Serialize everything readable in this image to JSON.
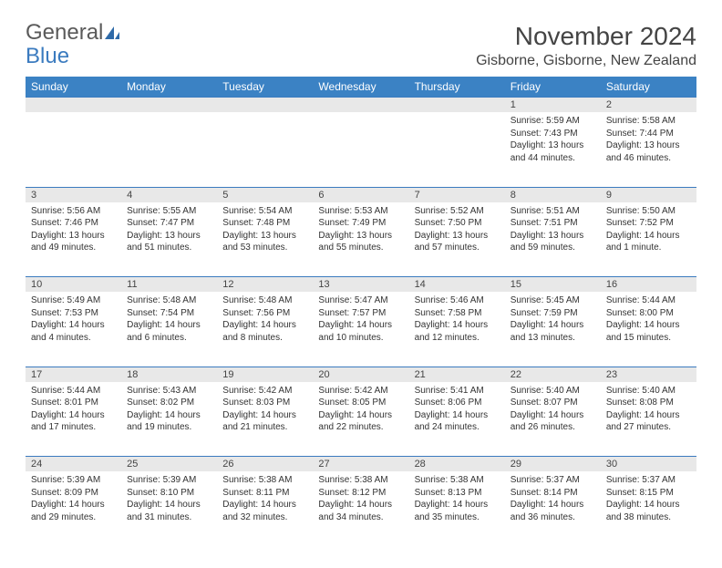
{
  "brand": {
    "word1": "General",
    "word2": "Blue"
  },
  "title": "November 2024",
  "location": "Gisborne, Gisborne, New Zealand",
  "colors": {
    "header_bg": "#3b82c4",
    "header_text": "#ffffff",
    "divider": "#3b7bbf",
    "daynum_bg": "#e8e8e8",
    "text": "#333333",
    "brand_gray": "#5a5a5a",
    "brand_blue": "#3b7bbf"
  },
  "weekdays": [
    "Sunday",
    "Monday",
    "Tuesday",
    "Wednesday",
    "Thursday",
    "Friday",
    "Saturday"
  ],
  "weeks": [
    [
      null,
      null,
      null,
      null,
      null,
      {
        "n": "1",
        "sr": "Sunrise: 5:59 AM",
        "ss": "Sunset: 7:43 PM",
        "dl1": "Daylight: 13 hours",
        "dl2": "and 44 minutes."
      },
      {
        "n": "2",
        "sr": "Sunrise: 5:58 AM",
        "ss": "Sunset: 7:44 PM",
        "dl1": "Daylight: 13 hours",
        "dl2": "and 46 minutes."
      }
    ],
    [
      {
        "n": "3",
        "sr": "Sunrise: 5:56 AM",
        "ss": "Sunset: 7:46 PM",
        "dl1": "Daylight: 13 hours",
        "dl2": "and 49 minutes."
      },
      {
        "n": "4",
        "sr": "Sunrise: 5:55 AM",
        "ss": "Sunset: 7:47 PM",
        "dl1": "Daylight: 13 hours",
        "dl2": "and 51 minutes."
      },
      {
        "n": "5",
        "sr": "Sunrise: 5:54 AM",
        "ss": "Sunset: 7:48 PM",
        "dl1": "Daylight: 13 hours",
        "dl2": "and 53 minutes."
      },
      {
        "n": "6",
        "sr": "Sunrise: 5:53 AM",
        "ss": "Sunset: 7:49 PM",
        "dl1": "Daylight: 13 hours",
        "dl2": "and 55 minutes."
      },
      {
        "n": "7",
        "sr": "Sunrise: 5:52 AM",
        "ss": "Sunset: 7:50 PM",
        "dl1": "Daylight: 13 hours",
        "dl2": "and 57 minutes."
      },
      {
        "n": "8",
        "sr": "Sunrise: 5:51 AM",
        "ss": "Sunset: 7:51 PM",
        "dl1": "Daylight: 13 hours",
        "dl2": "and 59 minutes."
      },
      {
        "n": "9",
        "sr": "Sunrise: 5:50 AM",
        "ss": "Sunset: 7:52 PM",
        "dl1": "Daylight: 14 hours",
        "dl2": "and 1 minute."
      }
    ],
    [
      {
        "n": "10",
        "sr": "Sunrise: 5:49 AM",
        "ss": "Sunset: 7:53 PM",
        "dl1": "Daylight: 14 hours",
        "dl2": "and 4 minutes."
      },
      {
        "n": "11",
        "sr": "Sunrise: 5:48 AM",
        "ss": "Sunset: 7:54 PM",
        "dl1": "Daylight: 14 hours",
        "dl2": "and 6 minutes."
      },
      {
        "n": "12",
        "sr": "Sunrise: 5:48 AM",
        "ss": "Sunset: 7:56 PM",
        "dl1": "Daylight: 14 hours",
        "dl2": "and 8 minutes."
      },
      {
        "n": "13",
        "sr": "Sunrise: 5:47 AM",
        "ss": "Sunset: 7:57 PM",
        "dl1": "Daylight: 14 hours",
        "dl2": "and 10 minutes."
      },
      {
        "n": "14",
        "sr": "Sunrise: 5:46 AM",
        "ss": "Sunset: 7:58 PM",
        "dl1": "Daylight: 14 hours",
        "dl2": "and 12 minutes."
      },
      {
        "n": "15",
        "sr": "Sunrise: 5:45 AM",
        "ss": "Sunset: 7:59 PM",
        "dl1": "Daylight: 14 hours",
        "dl2": "and 13 minutes."
      },
      {
        "n": "16",
        "sr": "Sunrise: 5:44 AM",
        "ss": "Sunset: 8:00 PM",
        "dl1": "Daylight: 14 hours",
        "dl2": "and 15 minutes."
      }
    ],
    [
      {
        "n": "17",
        "sr": "Sunrise: 5:44 AM",
        "ss": "Sunset: 8:01 PM",
        "dl1": "Daylight: 14 hours",
        "dl2": "and 17 minutes."
      },
      {
        "n": "18",
        "sr": "Sunrise: 5:43 AM",
        "ss": "Sunset: 8:02 PM",
        "dl1": "Daylight: 14 hours",
        "dl2": "and 19 minutes."
      },
      {
        "n": "19",
        "sr": "Sunrise: 5:42 AM",
        "ss": "Sunset: 8:03 PM",
        "dl1": "Daylight: 14 hours",
        "dl2": "and 21 minutes."
      },
      {
        "n": "20",
        "sr": "Sunrise: 5:42 AM",
        "ss": "Sunset: 8:05 PM",
        "dl1": "Daylight: 14 hours",
        "dl2": "and 22 minutes."
      },
      {
        "n": "21",
        "sr": "Sunrise: 5:41 AM",
        "ss": "Sunset: 8:06 PM",
        "dl1": "Daylight: 14 hours",
        "dl2": "and 24 minutes."
      },
      {
        "n": "22",
        "sr": "Sunrise: 5:40 AM",
        "ss": "Sunset: 8:07 PM",
        "dl1": "Daylight: 14 hours",
        "dl2": "and 26 minutes."
      },
      {
        "n": "23",
        "sr": "Sunrise: 5:40 AM",
        "ss": "Sunset: 8:08 PM",
        "dl1": "Daylight: 14 hours",
        "dl2": "and 27 minutes."
      }
    ],
    [
      {
        "n": "24",
        "sr": "Sunrise: 5:39 AM",
        "ss": "Sunset: 8:09 PM",
        "dl1": "Daylight: 14 hours",
        "dl2": "and 29 minutes."
      },
      {
        "n": "25",
        "sr": "Sunrise: 5:39 AM",
        "ss": "Sunset: 8:10 PM",
        "dl1": "Daylight: 14 hours",
        "dl2": "and 31 minutes."
      },
      {
        "n": "26",
        "sr": "Sunrise: 5:38 AM",
        "ss": "Sunset: 8:11 PM",
        "dl1": "Daylight: 14 hours",
        "dl2": "and 32 minutes."
      },
      {
        "n": "27",
        "sr": "Sunrise: 5:38 AM",
        "ss": "Sunset: 8:12 PM",
        "dl1": "Daylight: 14 hours",
        "dl2": "and 34 minutes."
      },
      {
        "n": "28",
        "sr": "Sunrise: 5:38 AM",
        "ss": "Sunset: 8:13 PM",
        "dl1": "Daylight: 14 hours",
        "dl2": "and 35 minutes."
      },
      {
        "n": "29",
        "sr": "Sunrise: 5:37 AM",
        "ss": "Sunset: 8:14 PM",
        "dl1": "Daylight: 14 hours",
        "dl2": "and 36 minutes."
      },
      {
        "n": "30",
        "sr": "Sunrise: 5:37 AM",
        "ss": "Sunset: 8:15 PM",
        "dl1": "Daylight: 14 hours",
        "dl2": "and 38 minutes."
      }
    ]
  ]
}
